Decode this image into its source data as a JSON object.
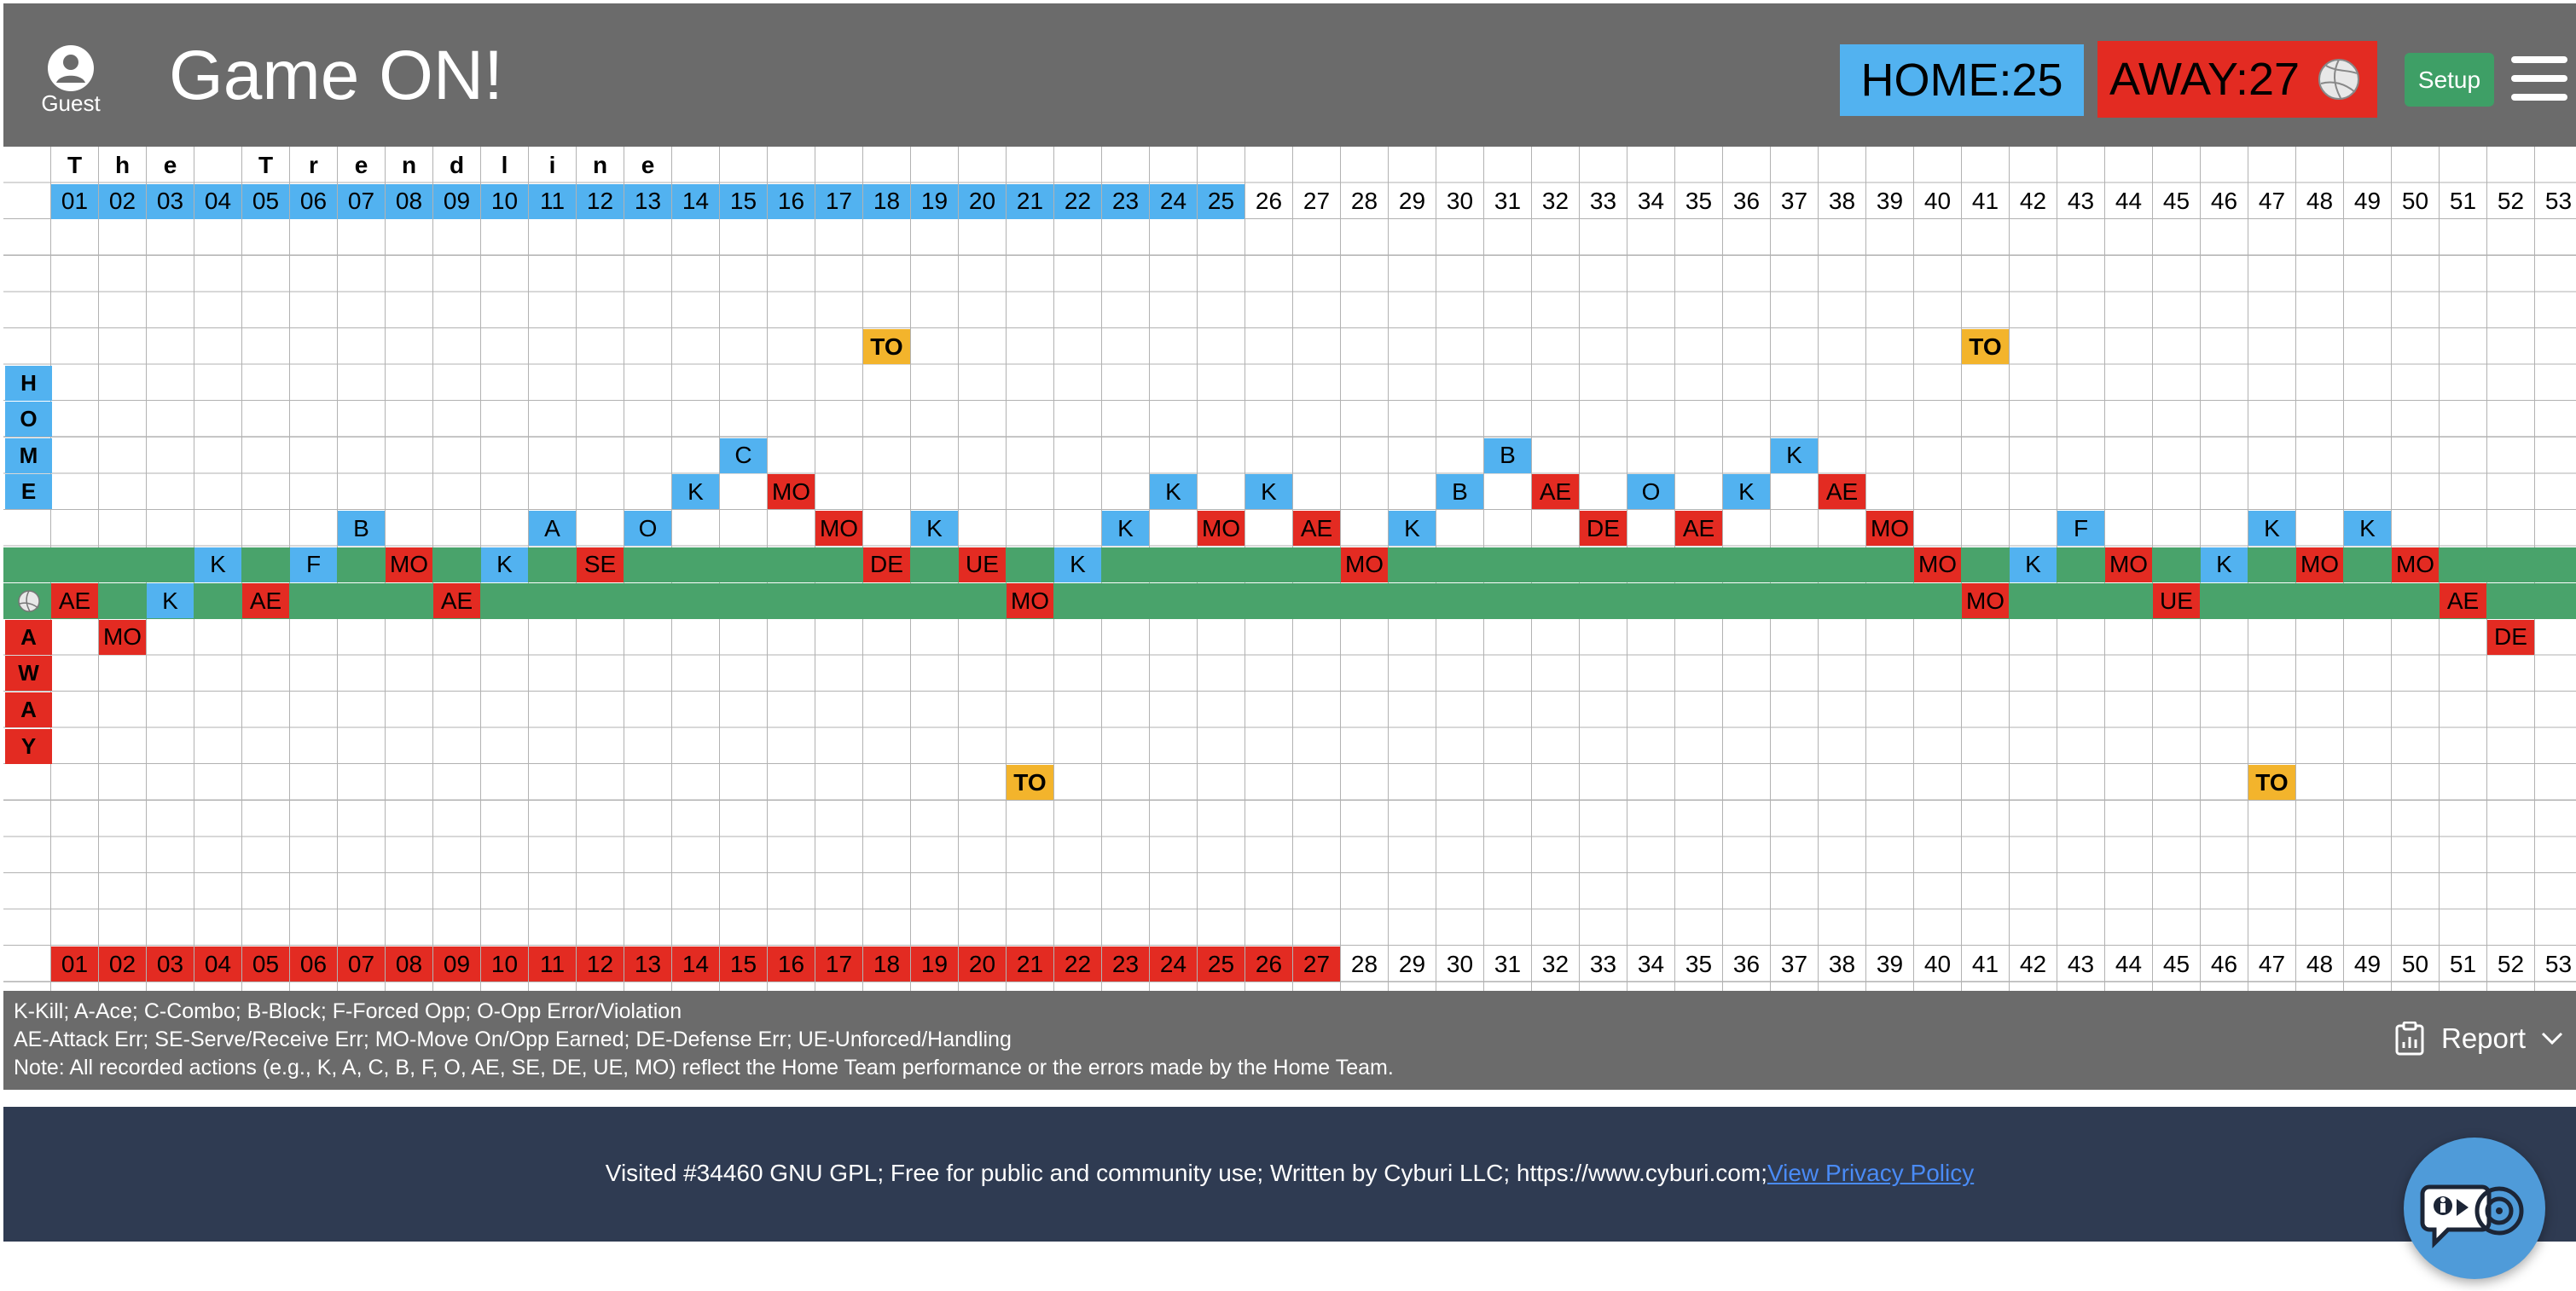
{
  "header": {
    "guest_label": "Guest",
    "title": "Game ON!",
    "home_score": "HOME:25",
    "away_score": "AWAY:27",
    "setup_label": "Setup",
    "icons": [
      "user-avatar-icon",
      "volleyball-icon",
      "hamburger-menu-icon"
    ]
  },
  "trendline": {
    "title_letters": [
      "T",
      "h",
      "e",
      "",
      "T",
      "r",
      "e",
      "n",
      "d",
      "l",
      "i",
      "n",
      "e"
    ],
    "columns": [
      "01",
      "02",
      "03",
      "04",
      "05",
      "06",
      "07",
      "08",
      "09",
      "10",
      "11",
      "12",
      "13",
      "14",
      "15",
      "16",
      "17",
      "18",
      "19",
      "20",
      "21",
      "22",
      "23",
      "24",
      "25",
      "26",
      "27",
      "28",
      "29",
      "30",
      "31",
      "32",
      "33",
      "34",
      "35",
      "36",
      "37",
      "38",
      "39",
      "40",
      "41",
      "42",
      "43",
      "44",
      "45",
      "46",
      "47",
      "48",
      "49",
      "50",
      "51",
      "52",
      "53"
    ],
    "home_points": 25,
    "away_points": 27,
    "home_label": [
      "H",
      "O",
      "M",
      "E"
    ],
    "away_label": [
      "A",
      "W",
      "A",
      "Y"
    ],
    "marks": [
      {
        "col": 0,
        "row": 12,
        "t": "AE",
        "c": "red"
      },
      {
        "col": 1,
        "row": 13,
        "t": "MO",
        "c": "red"
      },
      {
        "col": 2,
        "row": 12,
        "t": "K",
        "c": "blue"
      },
      {
        "col": 3,
        "row": 11,
        "t": "K",
        "c": "blue"
      },
      {
        "col": 4,
        "row": 12,
        "t": "AE",
        "c": "red"
      },
      {
        "col": 5,
        "row": 11,
        "t": "F",
        "c": "blue"
      },
      {
        "col": 6,
        "row": 10,
        "t": "B",
        "c": "blue"
      },
      {
        "col": 7,
        "row": 11,
        "t": "MO",
        "c": "red"
      },
      {
        "col": 8,
        "row": 12,
        "t": "AE",
        "c": "red"
      },
      {
        "col": 9,
        "row": 11,
        "t": "K",
        "c": "blue"
      },
      {
        "col": 10,
        "row": 10,
        "t": "A",
        "c": "blue"
      },
      {
        "col": 11,
        "row": 11,
        "t": "SE",
        "c": "red"
      },
      {
        "col": 12,
        "row": 10,
        "t": "O",
        "c": "blue"
      },
      {
        "col": 13,
        "row": 9,
        "t": "K",
        "c": "blue"
      },
      {
        "col": 14,
        "row": 8,
        "t": "C",
        "c": "blue"
      },
      {
        "col": 15,
        "row": 9,
        "t": "MO",
        "c": "red"
      },
      {
        "col": 16,
        "row": 10,
        "t": "MO",
        "c": "red"
      },
      {
        "col": 17,
        "row": 11,
        "t": "DE",
        "c": "red"
      },
      {
        "col": 17,
        "row": 5,
        "t": "TO",
        "c": "yellow"
      },
      {
        "col": 18,
        "row": 10,
        "t": "K",
        "c": "blue"
      },
      {
        "col": 19,
        "row": 11,
        "t": "UE",
        "c": "red"
      },
      {
        "col": 20,
        "row": 12,
        "t": "MO",
        "c": "red"
      },
      {
        "col": 20,
        "row": 17,
        "t": "TO",
        "c": "yellow"
      },
      {
        "col": 21,
        "row": 11,
        "t": "K",
        "c": "blue"
      },
      {
        "col": 22,
        "row": 10,
        "t": "K",
        "c": "blue"
      },
      {
        "col": 23,
        "row": 9,
        "t": "K",
        "c": "blue"
      },
      {
        "col": 24,
        "row": 10,
        "t": "MO",
        "c": "red"
      },
      {
        "col": 25,
        "row": 9,
        "t": "K",
        "c": "blue"
      },
      {
        "col": 26,
        "row": 10,
        "t": "AE",
        "c": "red"
      },
      {
        "col": 27,
        "row": 11,
        "t": "MO",
        "c": "red"
      },
      {
        "col": 28,
        "row": 10,
        "t": "K",
        "c": "blue"
      },
      {
        "col": 29,
        "row": 9,
        "t": "B",
        "c": "blue"
      },
      {
        "col": 30,
        "row": 8,
        "t": "B",
        "c": "blue"
      },
      {
        "col": 31,
        "row": 9,
        "t": "AE",
        "c": "red"
      },
      {
        "col": 32,
        "row": 10,
        "t": "DE",
        "c": "red"
      },
      {
        "col": 33,
        "row": 9,
        "t": "O",
        "c": "blue"
      },
      {
        "col": 34,
        "row": 10,
        "t": "AE",
        "c": "red"
      },
      {
        "col": 35,
        "row": 9,
        "t": "K",
        "c": "blue"
      },
      {
        "col": 36,
        "row": 8,
        "t": "K",
        "c": "blue"
      },
      {
        "col": 37,
        "row": 9,
        "t": "AE",
        "c": "red"
      },
      {
        "col": 38,
        "row": 10,
        "t": "MO",
        "c": "red"
      },
      {
        "col": 39,
        "row": 11,
        "t": "MO",
        "c": "red"
      },
      {
        "col": 40,
        "row": 12,
        "t": "MO",
        "c": "red"
      },
      {
        "col": 40,
        "row": 5,
        "t": "TO",
        "c": "yellow"
      },
      {
        "col": 41,
        "row": 11,
        "t": "K",
        "c": "blue"
      },
      {
        "col": 42,
        "row": 10,
        "t": "F",
        "c": "blue"
      },
      {
        "col": 43,
        "row": 11,
        "t": "MO",
        "c": "red"
      },
      {
        "col": 44,
        "row": 12,
        "t": "UE",
        "c": "red"
      },
      {
        "col": 45,
        "row": 11,
        "t": "K",
        "c": "blue"
      },
      {
        "col": 46,
        "row": 10,
        "t": "K",
        "c": "blue"
      },
      {
        "col": 46,
        "row": 17,
        "t": "TO",
        "c": "yellow"
      },
      {
        "col": 47,
        "row": 11,
        "t": "MO",
        "c": "red"
      },
      {
        "col": 48,
        "row": 10,
        "t": "K",
        "c": "blue"
      },
      {
        "col": 49,
        "row": 11,
        "t": "MO",
        "c": "red"
      },
      {
        "col": 50,
        "row": 12,
        "t": "AE",
        "c": "red"
      },
      {
        "col": 51,
        "row": 13,
        "t": "DE",
        "c": "red"
      }
    ]
  },
  "legend": {
    "line1": "K-Kill; A-Ace; C-Combo; B-Block; F-Forced Opp; O-Opp Error/Violation",
    "line2": "AE-Attack Err; SE-Serve/Receive Err; MO-Move On/Opp Earned; DE-Defense Err; UE-Unforced/Handling",
    "line3": "Note: All recorded actions (e.g., K, A, C, B, F, O, AE, SE, DE, UE, MO) reflect the Home Team performance or the errors made by the Home Team.",
    "report_label": "Report"
  },
  "footer": {
    "text": "Visited #34460  GNU GPL; Free for public and community use; Written by Cyburi LLC; https://www.cyburi.com;",
    "privacy_link": "View Privacy Policy"
  },
  "colors": {
    "header_bg": "#6b6b6b",
    "home": "#52b2f0",
    "away": "#e32b22",
    "timeout": "#f3b42c",
    "baseline": "#49a36b",
    "setup": "#3e9f66",
    "footer_bg": "#2f3b52"
  }
}
